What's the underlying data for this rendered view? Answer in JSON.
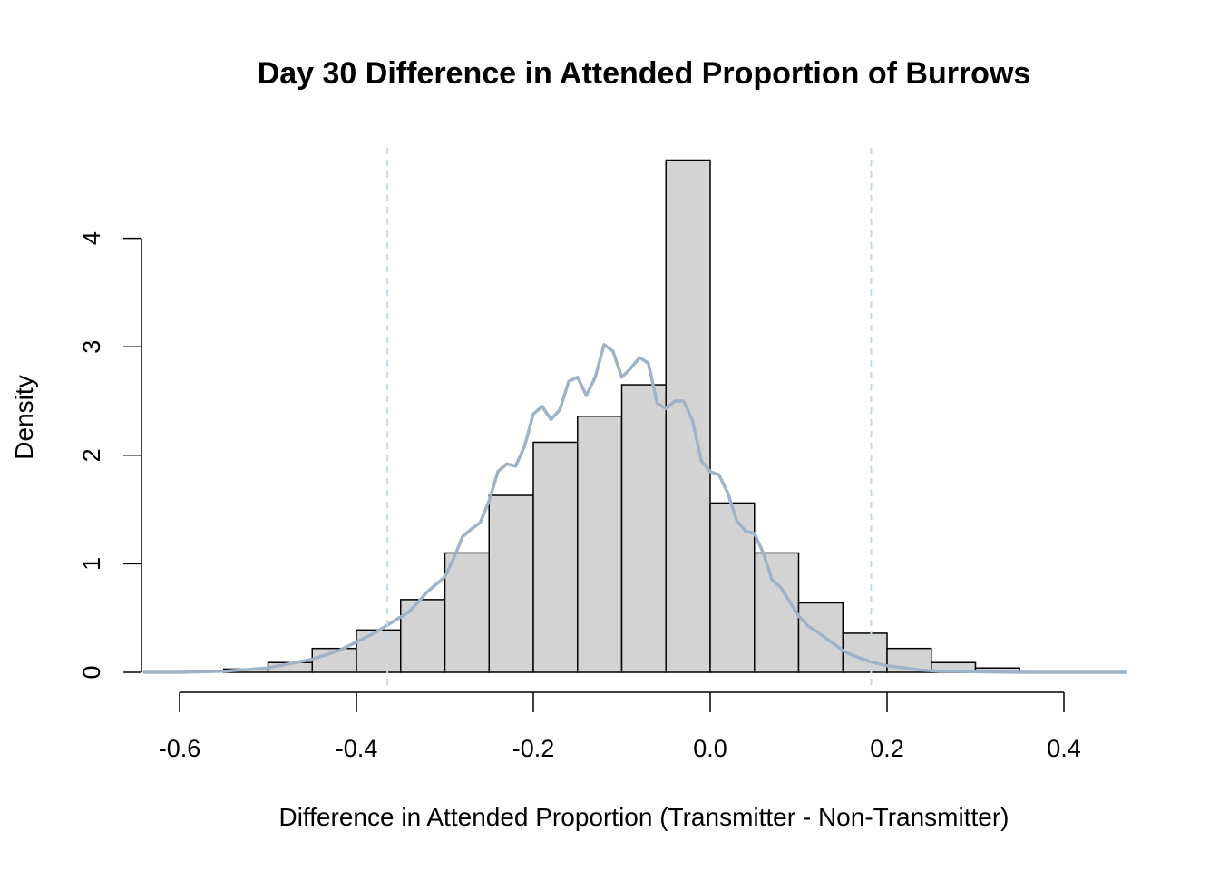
{
  "chart_data": {
    "type": "bar",
    "title": "Day 30 Difference in Attended Proportion of Burrows",
    "xlabel": "Difference in Attended Proportion (Transmitter - Non-Transmitter)",
    "ylabel": "Density",
    "xlim": [
      -0.64,
      0.47
    ],
    "ylim": [
      0,
      4.8
    ],
    "x_ticks": [
      "-0.6",
      "-0.4",
      "-0.2",
      "0.0",
      "0.2",
      "0.4"
    ],
    "y_ticks": [
      "0",
      "1",
      "2",
      "3",
      "4"
    ],
    "histogram": {
      "bin_edges": [
        -0.55,
        -0.5,
        -0.45,
        -0.4,
        -0.35,
        -0.3,
        -0.25,
        -0.2,
        -0.15,
        -0.1,
        -0.05,
        0.0,
        0.05,
        0.1,
        0.15,
        0.2,
        0.25,
        0.3,
        0.35
      ],
      "density": [
        0.03,
        0.09,
        0.22,
        0.39,
        0.67,
        1.1,
        1.63,
        2.12,
        2.36,
        2.65,
        4.72,
        1.56,
        1.1,
        0.64,
        0.36,
        0.22,
        0.09,
        0.04
      ],
      "fill_color": "#d3d3d3",
      "edge_color": "#000000"
    },
    "density_curve": {
      "color": "#9fb3c8",
      "x": [
        -0.64,
        -0.6,
        -0.55,
        -0.5,
        -0.45,
        -0.42,
        -0.4,
        -0.38,
        -0.36,
        -0.34,
        -0.32,
        -0.3,
        -0.29,
        -0.28,
        -0.27,
        -0.26,
        -0.25,
        -0.24,
        -0.23,
        -0.22,
        -0.21,
        -0.2,
        -0.19,
        -0.18,
        -0.17,
        -0.16,
        -0.15,
        -0.14,
        -0.13,
        -0.12,
        -0.11,
        -0.1,
        -0.09,
        -0.08,
        -0.07,
        -0.06,
        -0.05,
        -0.04,
        -0.03,
        -0.02,
        -0.01,
        0.0,
        0.01,
        0.02,
        0.03,
        0.04,
        0.05,
        0.06,
        0.07,
        0.08,
        0.09,
        0.1,
        0.11,
        0.12,
        0.13,
        0.14,
        0.15,
        0.16,
        0.18,
        0.2,
        0.22,
        0.24,
        0.26,
        0.28,
        0.3,
        0.32,
        0.34,
        0.36,
        0.4,
        0.44,
        0.47
      ],
      "y": [
        0.0,
        0.0,
        0.01,
        0.04,
        0.12,
        0.2,
        0.28,
        0.36,
        0.46,
        0.56,
        0.74,
        0.88,
        1.05,
        1.25,
        1.32,
        1.38,
        1.58,
        1.85,
        1.92,
        1.9,
        2.08,
        2.38,
        2.45,
        2.33,
        2.42,
        2.68,
        2.72,
        2.55,
        2.72,
        3.02,
        2.96,
        2.72,
        2.8,
        2.9,
        2.85,
        2.48,
        2.43,
        2.5,
        2.5,
        2.32,
        1.95,
        1.85,
        1.82,
        1.65,
        1.4,
        1.3,
        1.28,
        1.1,
        0.85,
        0.78,
        0.65,
        0.52,
        0.43,
        0.38,
        0.32,
        0.26,
        0.2,
        0.16,
        0.1,
        0.06,
        0.04,
        0.02,
        0.01,
        0.01,
        0.005,
        0.003,
        0.001,
        0.0005,
        0.0002,
        0.0001,
        0.0
      ]
    },
    "vlines": [
      -0.365,
      0.182
    ],
    "vline_color": "#c6d9e6",
    "vline_style": "dashed",
    "grid": false,
    "legend": "none"
  }
}
